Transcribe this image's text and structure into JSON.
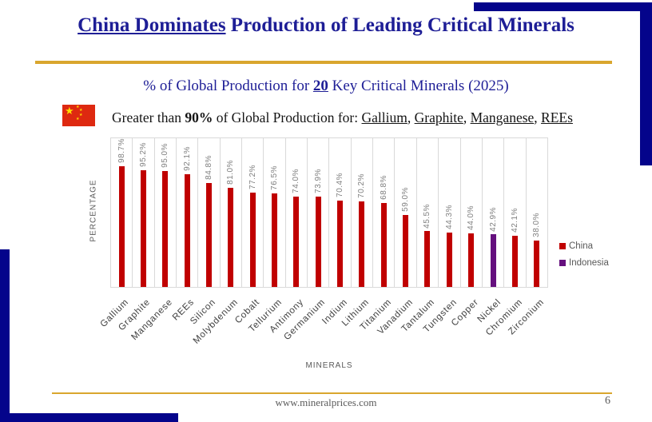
{
  "slide": {
    "title": {
      "emphasized": "China Dominates",
      "rest": " Production of Leading Critical Minerals"
    },
    "subtitle": {
      "pre": "% of Global Production for ",
      "number": "20",
      "post": " Key Critical Minerals (2025)"
    },
    "statement": {
      "pre": "Greater than ",
      "bold": "90%",
      "mid": " of Global Production for: ",
      "minerals": [
        "Gallium",
        "Graphite",
        "Manganese",
        "REEs"
      ],
      "separator": ", "
    },
    "footer": {
      "website": "www.mineralprices.com",
      "page_number": "6"
    }
  },
  "chart_data": {
    "type": "bar",
    "title": "% of Global Production for 20 Key Critical Minerals (2025)",
    "xlabel": "MINERALS",
    "ylabel": "PERCENTAGE",
    "ylim": [
      0,
      100
    ],
    "grid": "vertical category separators, light gray",
    "legend_position": "right",
    "categories": [
      "Gallium",
      "Graphite",
      "Manganese",
      "REEs",
      "Silicon",
      "Molybdenum",
      "Cobalt",
      "Tellurium",
      "Antimony",
      "Germanium",
      "Indium",
      "Lithium",
      "Titanium",
      "Vanadium",
      "Tantalum",
      "Tungsten",
      "Copper",
      "Nickel",
      "Chromium",
      "Zirconium"
    ],
    "values": [
      98.7,
      95.2,
      95.0,
      92.1,
      84.8,
      81.0,
      77.2,
      76.5,
      74.0,
      73.9,
      70.4,
      70.2,
      68.8,
      59.0,
      45.5,
      44.3,
      44.0,
      42.9,
      42.1,
      38.0
    ],
    "value_labels": [
      "98.7%",
      "95.2%",
      "95.0%",
      "92.1%",
      "84.8%",
      "81.0%",
      "77.2%",
      "76.5%",
      "74.0%",
      "73.9%",
      "70.4%",
      "70.2%",
      "68.8%",
      "59.0%",
      "45.5%",
      "44.3%",
      "44.0%",
      "42.9%",
      "42.1%",
      "38.0%"
    ],
    "bar_series": [
      "China",
      "China",
      "China",
      "China",
      "China",
      "China",
      "China",
      "China",
      "China",
      "China",
      "China",
      "China",
      "China",
      "China",
      "China",
      "China",
      "China",
      "Indonesia",
      "China",
      "China"
    ],
    "legend": [
      {
        "name": "China",
        "color": "#C00000"
      },
      {
        "name": "Indonesia",
        "color": "#65107E"
      }
    ]
  },
  "colors": {
    "corner_navy": "#04048B",
    "heading_navy": "#1E1E96",
    "gold_rule": "#D9A62E",
    "china_bar": "#C00000",
    "indonesia_bar": "#65107E"
  }
}
